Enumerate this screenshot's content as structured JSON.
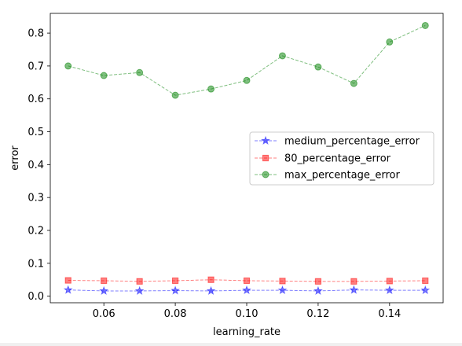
{
  "chart_data": {
    "type": "line",
    "title": "",
    "xlabel": "learning_rate",
    "ylabel": "error",
    "xlim": [
      0.045,
      0.155
    ],
    "ylim": [
      -0.02,
      0.86
    ],
    "x_ticks": [
      0.06,
      0.08,
      0.1,
      0.12,
      0.14
    ],
    "x_tick_labels": [
      "0.06",
      "0.08",
      "0.10",
      "0.12",
      "0.14"
    ],
    "y_ticks": [
      0.0,
      0.1,
      0.2,
      0.3,
      0.4,
      0.5,
      0.6,
      0.7,
      0.8
    ],
    "y_tick_labels": [
      "0.0",
      "0.1",
      "0.2",
      "0.3",
      "0.4",
      "0.5",
      "0.6",
      "0.7",
      "0.8"
    ],
    "grid": false,
    "legend_position": "center-right",
    "x": [
      0.05,
      0.06,
      0.07,
      0.08,
      0.09,
      0.1,
      0.11,
      0.12,
      0.13,
      0.14,
      0.15
    ],
    "series": [
      {
        "name": "medium_percentage_error",
        "color": "#0000ff",
        "marker": "star",
        "values": [
          0.019,
          0.016,
          0.016,
          0.017,
          0.016,
          0.018,
          0.018,
          0.016,
          0.019,
          0.018,
          0.018
        ]
      },
      {
        "name": "80_percentage_error",
        "color": "#ff0000",
        "marker": "square",
        "values": [
          0.048,
          0.047,
          0.045,
          0.047,
          0.05,
          0.047,
          0.046,
          0.045,
          0.045,
          0.046,
          0.047
        ]
      },
      {
        "name": "max_percentage_error",
        "color": "#008000",
        "marker": "circle",
        "values": [
          0.7,
          0.671,
          0.68,
          0.611,
          0.63,
          0.656,
          0.731,
          0.697,
          0.647,
          0.773,
          0.823
        ]
      }
    ]
  }
}
